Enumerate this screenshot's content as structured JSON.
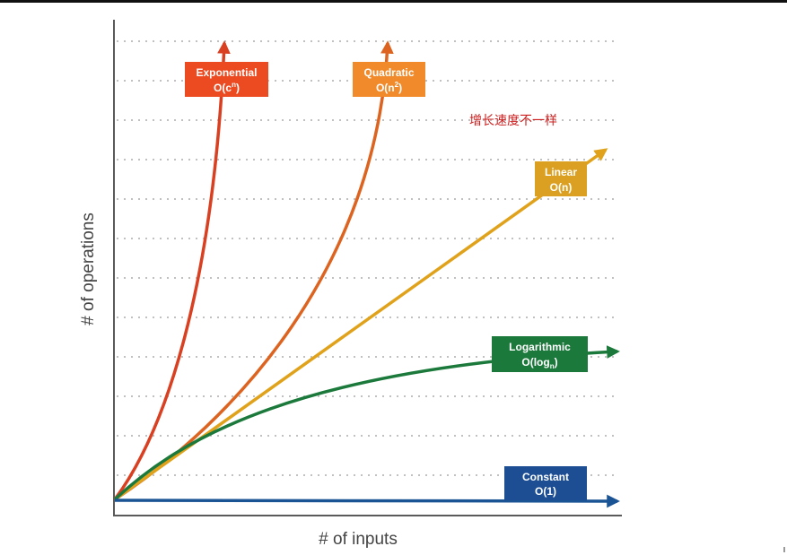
{
  "chart_data": {
    "type": "line",
    "title": "",
    "xlabel": "# of inputs",
    "ylabel": "# of operations",
    "annotation": "增长速度不一样",
    "grid": true,
    "series": [
      {
        "key": "exponential",
        "line1": "Exponential",
        "line2": "O(c",
        "sup": "n",
        "close": ")",
        "color": "#d94021",
        "box": "#ec4a20"
      },
      {
        "key": "quadratic",
        "line1": "Quadratic",
        "line2": "O(n",
        "sup": "2",
        "close": ")",
        "color": "#dd6420",
        "box": "#f08a2a"
      },
      {
        "key": "linear",
        "line1": "Linear",
        "line2": "O(n)",
        "color": "#e0a21a",
        "box": "#dba021"
      },
      {
        "key": "logarithmic",
        "line1": "Logarithmic",
        "line2": "O(log",
        "sub": "n",
        "close": ")",
        "color": "#1b7a3b",
        "box": "#1b7a3b"
      },
      {
        "key": "constant",
        "line1": "Constant",
        "line2": "O(1)",
        "color": "#1b5494",
        "box": "#1d4e94"
      }
    ],
    "colors": {
      "axis": "#5a5a5a",
      "grid": "#c0c0c0",
      "annotation": "#cc1f1f",
      "label_text": "#ffffff"
    }
  }
}
